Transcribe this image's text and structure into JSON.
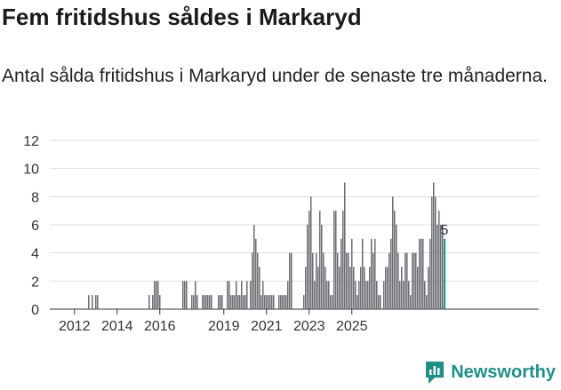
{
  "header": {
    "title": "Fem fritidshus såldes i Markaryd",
    "subtitle": "Antal sålda fritidshus i Markaryd under de senaste tre månaderna."
  },
  "brand": {
    "name": "Newsworthy"
  },
  "colors": {
    "bar": "#6b6b73",
    "highlight": "#1f9a8f",
    "grid": "#dddddd",
    "brand": "#1f8f87"
  },
  "chart_data": {
    "type": "bar",
    "title": "Fem fritidshus såldes i Markaryd",
    "xlabel": "",
    "ylabel": "",
    "ylim": [
      0,
      12
    ],
    "yticks": [
      "0",
      "2",
      "4",
      "6",
      "8",
      "10",
      "12"
    ],
    "xticks": [
      "2012",
      "2014",
      "2016",
      "2019",
      "2021",
      "2023",
      "2025"
    ],
    "start": "2011-01",
    "values": [
      0,
      0,
      0,
      0,
      0,
      0,
      0,
      0,
      0,
      0,
      0,
      0,
      0,
      0,
      0,
      0,
      0,
      0,
      0,
      0,
      1,
      0,
      1,
      0,
      1,
      1,
      0,
      0,
      0,
      0,
      0,
      0,
      0,
      0,
      0,
      0,
      0,
      0,
      0,
      0,
      0,
      0,
      0,
      0,
      0,
      0,
      0,
      0,
      0,
      0,
      0,
      0,
      0,
      0,
      1,
      0,
      1,
      2,
      2,
      2,
      1,
      0,
      0,
      0,
      0,
      0,
      0,
      0,
      0,
      0,
      0,
      0,
      0,
      2,
      2,
      2,
      0,
      0,
      1,
      1,
      2,
      1,
      0,
      0,
      1,
      1,
      1,
      1,
      1,
      1,
      0,
      0,
      0,
      1,
      1,
      1,
      0,
      0,
      2,
      2,
      1,
      1,
      1,
      2,
      1,
      1,
      2,
      1,
      1,
      2,
      0,
      2,
      4,
      6,
      5,
      4,
      3,
      1,
      2,
      1,
      1,
      1,
      1,
      1,
      1,
      0,
      0,
      1,
      1,
      1,
      1,
      1,
      2,
      4,
      4,
      0,
      0,
      0,
      0,
      0,
      0,
      1,
      3,
      6,
      7,
      8,
      4,
      2,
      4,
      3,
      7,
      6,
      4,
      3,
      2,
      2,
      1,
      1,
      7,
      7,
      4,
      3,
      5,
      7,
      9,
      4,
      4,
      3,
      5,
      3,
      2,
      1,
      2,
      3,
      5,
      3,
      2,
      2,
      3,
      5,
      4,
      5,
      2,
      1,
      1,
      0,
      2,
      3,
      3,
      4,
      5,
      8,
      7,
      6,
      4,
      2,
      3,
      2,
      4,
      4,
      2,
      1,
      4,
      4,
      4,
      3,
      5,
      5,
      5,
      2,
      1,
      3,
      5,
      8,
      9,
      8,
      6,
      7,
      6,
      6,
      5
    ],
    "highlight_last": true,
    "last_value_label": "5"
  }
}
